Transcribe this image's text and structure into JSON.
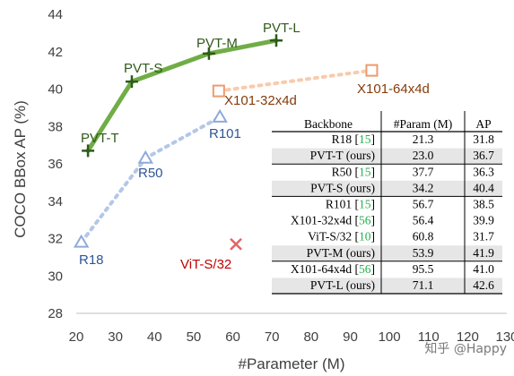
{
  "chart_data": {
    "type": "scatter",
    "xlabel": "#Parameter (M)",
    "ylabel": "COCO BBox AP (%)",
    "xlim": [
      20,
      130
    ],
    "ylim": [
      28,
      44
    ],
    "xticks": [
      "20",
      "30",
      "40",
      "50",
      "60",
      "70",
      "80",
      "90",
      "100",
      "110",
      "120",
      "130"
    ],
    "yticks": [
      "28",
      "30",
      "32",
      "34",
      "36",
      "38",
      "40",
      "42",
      "44"
    ],
    "grid": false,
    "series": [
      {
        "group": "pvt",
        "color": "#70ad47",
        "marker_color": "#2e5a1a",
        "marker": "plus",
        "line": "solid",
        "points": [
          {
            "label": "PVT-T",
            "x": 23.0,
            "y": 36.7
          },
          {
            "label": "PVT-S",
            "x": 34.2,
            "y": 40.4
          },
          {
            "label": "PVT-M",
            "x": 53.9,
            "y": 41.9
          },
          {
            "label": "PVT-L",
            "x": 71.1,
            "y": 42.6
          }
        ]
      },
      {
        "group": "resnet",
        "color": "#b4c7e7",
        "marker_color": "#8faadc",
        "marker": "triangle",
        "line": "dotted",
        "points": [
          {
            "label": "R18",
            "x": 21.3,
            "y": 31.8
          },
          {
            "label": "R50",
            "x": 37.7,
            "y": 36.3
          },
          {
            "label": "R101",
            "x": 56.7,
            "y": 38.5
          }
        ]
      },
      {
        "group": "resnext",
        "color": "#f8cbad",
        "marker_color": "#ed9b6d",
        "marker": "square",
        "line": "dotted",
        "points": [
          {
            "label": "X101-32x4d",
            "x": 56.4,
            "y": 39.9
          },
          {
            "label": "X101-64x4d",
            "x": 95.5,
            "y": 41.0
          }
        ]
      },
      {
        "group": "vit",
        "color": "#e06666",
        "marker_color": "#e06666",
        "marker": "x",
        "line": "none",
        "points": [
          {
            "label": "ViT-S/32",
            "x": 60.8,
            "y": 31.7
          }
        ]
      }
    ],
    "label_colors": {
      "pvt": "#2e5a1a",
      "resnet": "#2f5597",
      "resnext": "#843c0c",
      "vit": "#c00000"
    },
    "table": {
      "columns": [
        "Backbone",
        "#Param (M)",
        "AP"
      ],
      "groups": [
        [
          {
            "name": "R18",
            "ref": "[15]",
            "params": "21.3",
            "ap": "31.8",
            "highlight": false
          },
          {
            "name": "PVT-T (ours)",
            "ref": "",
            "params": "23.0",
            "ap": "36.7",
            "highlight": true
          }
        ],
        [
          {
            "name": "R50",
            "ref": "[15]",
            "params": "37.7",
            "ap": "36.3",
            "highlight": false
          },
          {
            "name": "PVT-S (ours)",
            "ref": "",
            "params": "34.2",
            "ap": "40.4",
            "highlight": true
          }
        ],
        [
          {
            "name": "R101",
            "ref": "[15]",
            "params": "56.7",
            "ap": "38.5",
            "highlight": false
          },
          {
            "name": "X101-32x4d",
            "ref": "[56]",
            "params": "56.4",
            "ap": "39.9",
            "highlight": false
          },
          {
            "name": "ViT-S/32",
            "ref": "[10]",
            "params": "60.8",
            "ap": "31.7",
            "highlight": false
          },
          {
            "name": "PVT-M (ours)",
            "ref": "",
            "params": "53.9",
            "ap": "41.9",
            "highlight": true
          }
        ],
        [
          {
            "name": "X101-64x4d",
            "ref": "[56]",
            "params": "95.5",
            "ap": "41.0",
            "highlight": false
          },
          {
            "name": "PVT-L (ours)",
            "ref": "",
            "params": "71.1",
            "ap": "42.6",
            "highlight": true
          }
        ]
      ],
      "ref_color": "#22b24c",
      "highlight_color": "#e6e6e6"
    }
  },
  "watermark": "知乎 @Happy"
}
